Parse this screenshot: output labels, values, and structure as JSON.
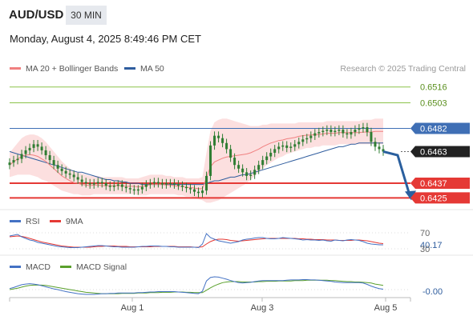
{
  "header": {
    "symbol": "AUD/USD",
    "timeframe": "30 MIN",
    "datetime": "Monday, August 4, 2025 8:49:46 PM CET"
  },
  "legend": {
    "ma20": "MA 20 + Bollinger Bands",
    "ma50": "MA 50",
    "credit": "Research © 2025 Trading Central"
  },
  "colors": {
    "ma20": "#f08080",
    "ma50": "#2f5d9e",
    "bollinger": "#fcdcdc",
    "candle": "#2e7d32",
    "resistance": "#8bc34a",
    "pivot": "#3f6fb5",
    "support": "#e53935",
    "last_price": "#222222",
    "rsi": "#4472c4",
    "rsi_ma": "#e53935",
    "macd": "#4472c4",
    "macd_signal": "#5aa02c",
    "arrow": "#2a5f9e"
  },
  "chart_data": [
    {
      "type": "candlestick",
      "title": "AUD/USD",
      "series": [
        {
          "name": "MA 20 + Bollinger Bands"
        },
        {
          "name": "MA 50"
        }
      ],
      "ylim": [
        0.6418,
        0.6525
      ],
      "x_ticks": [
        "Aug 1",
        "Aug 3",
        "Aug 5"
      ],
      "levels": [
        {
          "value": 0.6516,
          "label": "0.6516",
          "kind": "resistance"
        },
        {
          "value": 0.6503,
          "label": "0.6503",
          "kind": "resistance"
        },
        {
          "value": 0.6482,
          "label": "0.6482",
          "kind": "pivot"
        },
        {
          "value": 0.6463,
          "label": "0.6463",
          "kind": "last"
        },
        {
          "value": 0.6437,
          "label": "0.6437",
          "kind": "support"
        },
        {
          "value": 0.6425,
          "label": "0.6425",
          "kind": "support"
        }
      ],
      "close": [
        0.6454,
        0.6456,
        0.6457,
        0.6461,
        0.6464,
        0.6466,
        0.6469,
        0.6467,
        0.6464,
        0.646,
        0.6456,
        0.6452,
        0.6449,
        0.6447,
        0.6445,
        0.6444,
        0.6442,
        0.644,
        0.6438,
        0.6437,
        0.6436,
        0.6437,
        0.6438,
        0.6437,
        0.6435,
        0.6434,
        0.6435,
        0.6436,
        0.6434,
        0.6433,
        0.6432,
        0.6431,
        0.6432,
        0.6434,
        0.6436,
        0.6437,
        0.6438,
        0.6437,
        0.6436,
        0.6437,
        0.6437,
        0.6436,
        0.6435,
        0.6434,
        0.6433,
        0.6432,
        0.643,
        0.6429,
        0.6431,
        0.6443,
        0.6468,
        0.6476,
        0.6474,
        0.647,
        0.6465,
        0.6458,
        0.6452,
        0.6449,
        0.6446,
        0.6443,
        0.6444,
        0.6448,
        0.6452,
        0.6456,
        0.6459,
        0.6462,
        0.6465,
        0.6467,
        0.6468,
        0.6466,
        0.6467,
        0.6469,
        0.6471,
        0.6473,
        0.6474,
        0.6476,
        0.6478,
        0.6479,
        0.648,
        0.6481,
        0.6479,
        0.648,
        0.6481,
        0.6478,
        0.6477,
        0.6479,
        0.6481,
        0.6482,
        0.6483,
        0.6479,
        0.6471,
        0.6467,
        0.6465,
        0.6463
      ],
      "bb_upper": [
        0.6462,
        0.6466,
        0.647,
        0.6474,
        0.6476,
        0.6477,
        0.6477,
        0.6476,
        0.6474,
        0.6471,
        0.6467,
        0.6463,
        0.6459,
        0.6455,
        0.6452,
        0.6449,
        0.6447,
        0.6446,
        0.6445,
        0.6444,
        0.6443,
        0.6443,
        0.6443,
        0.6442,
        0.6442,
        0.6442,
        0.6442,
        0.6442,
        0.6442,
        0.6441,
        0.6441,
        0.6441,
        0.6441,
        0.6442,
        0.6443,
        0.6444,
        0.6444,
        0.6444,
        0.6444,
        0.6443,
        0.6443,
        0.6442,
        0.6442,
        0.6442,
        0.6441,
        0.6441,
        0.6441,
        0.6441,
        0.6442,
        0.6462,
        0.648,
        0.6487,
        0.6489,
        0.649,
        0.649,
        0.6489,
        0.6488,
        0.6487,
        0.6486,
        0.6485,
        0.6484,
        0.6484,
        0.6484,
        0.6485,
        0.6485,
        0.6486,
        0.6486,
        0.6486,
        0.6486,
        0.6486,
        0.6486,
        0.6486,
        0.6487,
        0.6487,
        0.6487,
        0.6487,
        0.6487,
        0.6487,
        0.6487,
        0.6488,
        0.6488,
        0.6488,
        0.6488,
        0.6488,
        0.6488,
        0.6488,
        0.6488,
        0.6488,
        0.6489,
        0.6489,
        0.6489,
        0.649,
        0.649,
        0.649
      ],
      "bb_lower": [
        0.6442,
        0.6443,
        0.6444,
        0.6444,
        0.6444,
        0.6444,
        0.6443,
        0.6442,
        0.644,
        0.6439,
        0.6437,
        0.6435,
        0.6433,
        0.6431,
        0.643,
        0.6429,
        0.6428,
        0.6428,
        0.6427,
        0.6427,
        0.6427,
        0.6428,
        0.6428,
        0.6428,
        0.6428,
        0.6428,
        0.6428,
        0.6428,
        0.6428,
        0.6428,
        0.6428,
        0.6428,
        0.6427,
        0.6427,
        0.6427,
        0.6428,
        0.6428,
        0.6428,
        0.6428,
        0.6428,
        0.6428,
        0.6428,
        0.6427,
        0.6427,
        0.6426,
        0.6426,
        0.6425,
        0.6424,
        0.6423,
        0.6421,
        0.6421,
        0.6422,
        0.6423,
        0.6425,
        0.6427,
        0.6429,
        0.6431,
        0.6433,
        0.6435,
        0.6437,
        0.644,
        0.6443,
        0.6446,
        0.6449,
        0.6452,
        0.6454,
        0.6456,
        0.6458,
        0.6459,
        0.6461,
        0.6462,
        0.6463,
        0.6464,
        0.6465,
        0.6466,
        0.6466,
        0.6467,
        0.6467,
        0.6468,
        0.6468,
        0.6468,
        0.6468,
        0.6469,
        0.6469,
        0.6469,
        0.6469,
        0.6469,
        0.6469,
        0.6469,
        0.6469,
        0.6469,
        0.6469,
        0.6469,
        0.6469
      ],
      "ma50": [
        0.6463,
        0.6462,
        0.6461,
        0.646,
        0.6459,
        0.6458,
        0.6457,
        0.6456,
        0.6455,
        0.6454,
        0.6453,
        0.6452,
        0.6451,
        0.645,
        0.6449,
        0.6448,
        0.6447,
        0.6446,
        0.6446,
        0.6445,
        0.6444,
        0.6443,
        0.6442,
        0.6441,
        0.644,
        0.644,
        0.6439,
        0.6439,
        0.6438,
        0.6438,
        0.6437,
        0.6437,
        0.6437,
        0.6436,
        0.6436,
        0.6436,
        0.6436,
        0.6436,
        0.6436,
        0.6436,
        0.6436,
        0.6436,
        0.6436,
        0.6436,
        0.6436,
        0.6436,
        0.6436,
        0.6436,
        0.6436,
        0.6437,
        0.6438,
        0.6439,
        0.6439,
        0.644,
        0.6441,
        0.6442,
        0.6442,
        0.6443,
        0.6444,
        0.6444,
        0.6445,
        0.6446,
        0.6447,
        0.6448,
        0.6449,
        0.645,
        0.6451,
        0.6452,
        0.6453,
        0.6454,
        0.6455,
        0.6456,
        0.6457,
        0.6458,
        0.6459,
        0.646,
        0.6461,
        0.6462,
        0.6463,
        0.6464,
        0.6465,
        0.6466,
        0.6467,
        0.6467,
        0.6468,
        0.6469,
        0.6469,
        0.647,
        0.647,
        0.647,
        0.647,
        0.647,
        0.647,
        0.647
      ],
      "forecast": [
        0.6463,
        0.646,
        0.6425
      ]
    },
    {
      "type": "line",
      "series": [
        {
          "name": "RSI"
        },
        {
          "name": "9MA"
        }
      ],
      "ylim": [
        20,
        80
      ],
      "y_ticks": [
        "70",
        "40.17",
        "30"
      ],
      "rsi": [
        62,
        64,
        66,
        60,
        56,
        52,
        50,
        46,
        44,
        42,
        40,
        38,
        36,
        35,
        34,
        33,
        33,
        33,
        34,
        35,
        36,
        37,
        38,
        38,
        37,
        36,
        35,
        35,
        34,
        34,
        34,
        34,
        35,
        36,
        36,
        37,
        37,
        37,
        36,
        36,
        35,
        35,
        34,
        34,
        34,
        34,
        34,
        33,
        42,
        68,
        58,
        54,
        50,
        48,
        46,
        44,
        46,
        48,
        52,
        54,
        55,
        57,
        58,
        58,
        56,
        55,
        55,
        56,
        58,
        57,
        56,
        55,
        54,
        52,
        53,
        52,
        52,
        51,
        52,
        50,
        49,
        52,
        51,
        50,
        52,
        53,
        52,
        51,
        48,
        44,
        42,
        41,
        40,
        40
      ],
      "rsi_ma": [
        60,
        61,
        62,
        61,
        59,
        56,
        53,
        50,
        47,
        45,
        43,
        41,
        39,
        37,
        36,
        35,
        34,
        34,
        34,
        34,
        34,
        35,
        36,
        36,
        37,
        37,
        37,
        36,
        36,
        36,
        35,
        35,
        35,
        35,
        35,
        35,
        36,
        36,
        36,
        36,
        36,
        36,
        35,
        35,
        35,
        35,
        34,
        34,
        35,
        42,
        48,
        52,
        54,
        54,
        53,
        51,
        50,
        49,
        50,
        51,
        52,
        53,
        54,
        55,
        56,
        56,
        56,
        56,
        56,
        56,
        56,
        56,
        55,
        55,
        54,
        54,
        53,
        53,
        53,
        52,
        52,
        52,
        51,
        51,
        51,
        51,
        52,
        52,
        51,
        50,
        48,
        46,
        44,
        43
      ]
    },
    {
      "type": "line",
      "series": [
        {
          "name": "MACD"
        },
        {
          "name": "MACD Signal"
        }
      ],
      "y_ticks": [
        "-0.00"
      ],
      "macd": [
        0.3,
        0.6,
        1.0,
        1.4,
        1.6,
        1.7,
        1.6,
        1.4,
        1.1,
        0.8,
        0.5,
        0.2,
        0.0,
        -0.3,
        -0.6,
        -0.8,
        -1.0,
        -1.2,
        -1.3,
        -1.4,
        -1.4,
        -1.4,
        -1.3,
        -1.2,
        -1.2,
        -1.1,
        -1.1,
        -1.0,
        -1.0,
        -1.0,
        -1.0,
        -1.0,
        -0.9,
        -0.9,
        -0.8,
        -0.7,
        -0.7,
        -0.6,
        -0.6,
        -0.6,
        -0.6,
        -0.6,
        -0.7,
        -0.8,
        -0.9,
        -1.0,
        -1.1,
        -1.2,
        -0.5,
        2.5,
        3.5,
        3.7,
        3.6,
        3.3,
        3.0,
        2.6,
        2.3,
        2.0,
        1.9,
        2.0,
        2.1,
        2.3,
        2.5,
        2.6,
        2.6,
        2.6,
        2.6,
        2.6,
        2.6,
        2.7,
        2.8,
        2.8,
        2.8,
        2.9,
        2.9,
        2.8,
        2.8,
        2.7,
        2.6,
        2.5,
        2.4,
        2.2,
        2.1,
        2.0,
        2.0,
        2.0,
        2.0,
        2.0,
        1.9,
        1.5,
        1.0,
        0.6,
        0.3,
        0.1
      ],
      "signal": [
        0.0,
        0.2,
        0.4,
        0.7,
        1.0,
        1.2,
        1.3,
        1.3,
        1.3,
        1.2,
        1.0,
        0.8,
        0.6,
        0.4,
        0.2,
        0.0,
        -0.2,
        -0.4,
        -0.6,
        -0.8,
        -0.9,
        -1.0,
        -1.1,
        -1.2,
        -1.2,
        -1.2,
        -1.2,
        -1.2,
        -1.1,
        -1.1,
        -1.1,
        -1.1,
        -1.0,
        -1.0,
        -1.0,
        -0.9,
        -0.9,
        -0.9,
        -0.8,
        -0.8,
        -0.8,
        -0.7,
        -0.7,
        -0.7,
        -0.8,
        -0.8,
        -0.9,
        -0.9,
        -0.9,
        -0.2,
        0.5,
        1.1,
        1.6,
        2.0,
        2.2,
        2.3,
        2.3,
        2.3,
        2.2,
        2.2,
        2.2,
        2.2,
        2.3,
        2.3,
        2.4,
        2.4,
        2.4,
        2.5,
        2.5,
        2.5,
        2.5,
        2.6,
        2.6,
        2.6,
        2.7,
        2.7,
        2.7,
        2.7,
        2.7,
        2.7,
        2.6,
        2.6,
        2.5,
        2.4,
        2.3,
        2.3,
        2.2,
        2.2,
        2.1,
        2.0,
        1.9,
        1.6,
        1.4,
        1.2
      ]
    }
  ]
}
